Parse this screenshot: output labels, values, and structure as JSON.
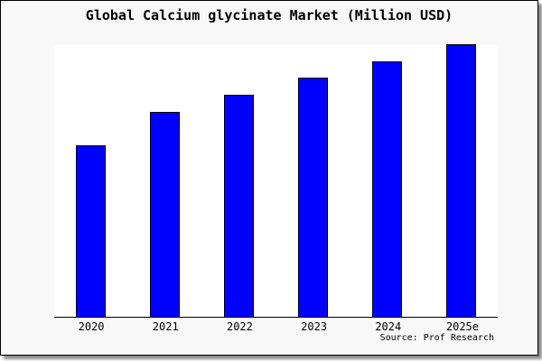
{
  "window": {
    "background": "#f8f8f8",
    "frame_border_color": "#000000",
    "shadow_color": "#8a8a8a"
  },
  "source_note": "Source: Prof Research",
  "chart_data": {
    "type": "bar",
    "title": "Global Calcium glycinate Market (Million USD)",
    "unit": "Million USD",
    "categories": [
      "2020",
      "2021",
      "2022",
      "2023",
      "2024",
      "2025e"
    ],
    "values_pct_of_max": [
      62.8,
      75.1,
      81.4,
      87.7,
      93.7,
      100
    ],
    "xlabel": "",
    "ylabel": "",
    "y_axis_visible": false,
    "gridlines": false,
    "legend": false,
    "bar_color": "#0000ff",
    "bar_border_color": "#000000",
    "plot_background": "#ffffff",
    "axis_line_color": "#000000"
  }
}
